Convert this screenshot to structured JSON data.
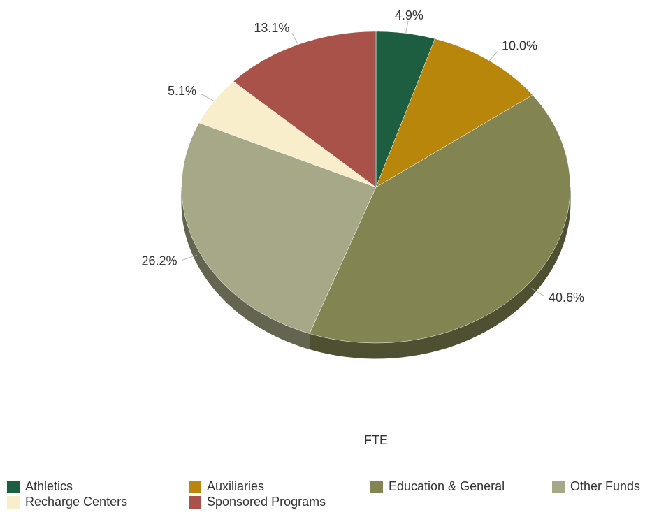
{
  "chart_data": {
    "type": "pie",
    "title": "FTE",
    "categories": [
      "Athletics",
      "Auxiliaries",
      "Education & General",
      "Other Funds",
      "Recharge Centers",
      "Sponsored Programs"
    ],
    "values": [
      4.9,
      10.0,
      40.6,
      26.2,
      5.1,
      13.1
    ],
    "value_labels": [
      "4.9%",
      "10.0%",
      "40.6%",
      "26.2%",
      "5.1%",
      "13.1%"
    ],
    "colors": [
      "#1e5e40",
      "#b8860b",
      "#828552",
      "#a7a887",
      "#f8eecb",
      "#a8524a"
    ],
    "legend": "bottom"
  }
}
